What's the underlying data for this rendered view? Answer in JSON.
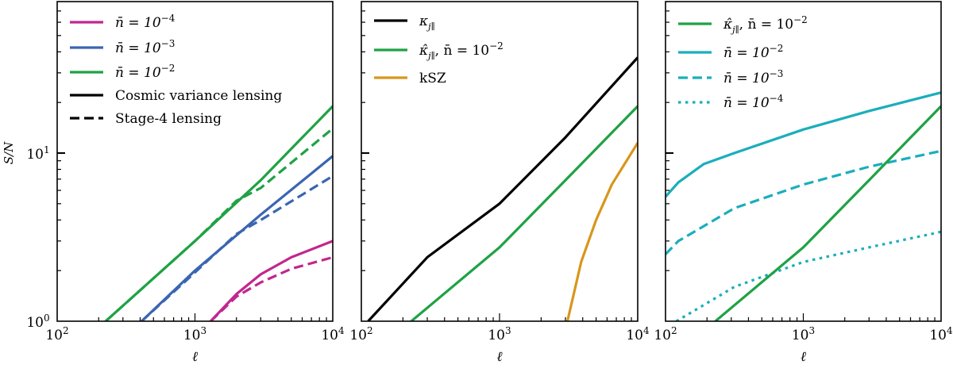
{
  "chart_data": [
    {
      "type": "line",
      "xscale": "log",
      "yscale": "log",
      "xlim": [
        100,
        10000
      ],
      "ylim": [
        1,
        80
      ],
      "xlabel": "ℓ",
      "ylabel": "S/N",
      "xticklabels": [
        {
          "base": "10",
          "exp": "2"
        },
        {
          "base": "10",
          "exp": "3"
        },
        {
          "base": "10",
          "exp": "4"
        }
      ],
      "yticklabels": [
        {
          "base": "10",
          "exp": "0"
        },
        {
          "base": "10",
          "exp": "1"
        }
      ],
      "legend_position": "top-left",
      "legend": [
        {
          "label": "n̄ = 10",
          "exp": "−4",
          "color": "#c1278f",
          "style": "solid"
        },
        {
          "label": "n̄ = 10",
          "exp": "−3",
          "color": "#3a65b1",
          "style": "solid"
        },
        {
          "label": "n̄ = 10",
          "exp": "−2",
          "color": "#1fa244",
          "style": "solid"
        },
        {
          "label": "Cosmic variance lensing",
          "exp": "",
          "color": "#000000",
          "style": "solid"
        },
        {
          "label": "Stage-4 lensing",
          "exp": "",
          "color": "#000000",
          "style": "dashed"
        }
      ],
      "series": [
        {
          "color": "#1fa244",
          "style": "solid",
          "x": [
            225,
            1000,
            3000,
            10000
          ],
          "y": [
            1,
            3.0,
            6.9,
            19
          ]
        },
        {
          "color": "#1fa244",
          "style": "dashed",
          "x": [
            225,
            1000,
            2000,
            3000,
            10000
          ],
          "y": [
            1,
            3.0,
            5.2,
            6.2,
            14
          ]
        },
        {
          "color": "#3a65b1",
          "style": "solid",
          "x": [
            410,
            1000,
            3000,
            10000
          ],
          "y": [
            1,
            2.0,
            4.3,
            9.6
          ]
        },
        {
          "color": "#3a65b1",
          "style": "dashed",
          "x": [
            410,
            1000,
            2000,
            3000,
            10000
          ],
          "y": [
            1,
            1.95,
            3.3,
            4.0,
            7.3
          ]
        },
        {
          "color": "#c1278f",
          "style": "solid",
          "x": [
            1300,
            2000,
            3000,
            5000,
            10000
          ],
          "y": [
            1,
            1.45,
            1.9,
            2.4,
            3.0
          ]
        },
        {
          "color": "#c1278f",
          "style": "dashed",
          "x": [
            1300,
            2000,
            3000,
            5000,
            10000
          ],
          "y": [
            1,
            1.4,
            1.7,
            2.05,
            2.4
          ]
        }
      ]
    },
    {
      "type": "line",
      "xscale": "log",
      "yscale": "log",
      "xlim": [
        100,
        10000
      ],
      "ylim": [
        1,
        80
      ],
      "xlabel": "ℓ",
      "xticklabels": [
        {
          "base": "10",
          "exp": "2"
        },
        {
          "base": "10",
          "exp": "3"
        },
        {
          "base": "10",
          "exp": "4"
        }
      ],
      "legend_position": "top-left",
      "legend": [
        {
          "label": "κ",
          "hat": false,
          "sub": "j∥",
          "rest": "",
          "exp": "",
          "color": "#000000",
          "style": "solid"
        },
        {
          "label": "κ̂",
          "hat": true,
          "sub": "j∥",
          "rest": ", n̄ = 10",
          "exp": "−2",
          "color": "#1fa244",
          "style": "solid"
        },
        {
          "label": "kSZ",
          "sub": "",
          "rest": "",
          "exp": "",
          "color": "#d8961c",
          "style": "solid"
        }
      ],
      "series": [
        {
          "color": "#000000",
          "style": "solid",
          "x": [
            112,
            300,
            1000,
            3000,
            10000
          ],
          "y": [
            1,
            2.4,
            5.0,
            12.4,
            37
          ]
        },
        {
          "color": "#1fa244",
          "style": "solid",
          "x": [
            230,
            1000,
            3000,
            10000
          ],
          "y": [
            1,
            2.75,
            6.9,
            19
          ]
        },
        {
          "color": "#d8961c",
          "style": "solid",
          "x": [
            3100,
            3900,
            5000,
            6500,
            10000
          ],
          "y": [
            1,
            2.25,
            4.0,
            6.5,
            11.5
          ]
        }
      ]
    },
    {
      "type": "line",
      "xscale": "log",
      "yscale": "log",
      "xlim": [
        100,
        10000
      ],
      "ylim": [
        1,
        80
      ],
      "xlabel": "ℓ",
      "xticklabels": [
        {
          "base": "10",
          "exp": "2"
        },
        {
          "base": "10",
          "exp": "3"
        },
        {
          "base": "10",
          "exp": "4"
        }
      ],
      "legend_position": "top-left",
      "legend": [
        {
          "label": "κ̂",
          "hat": true,
          "sub": "j∥",
          "rest": ", n̄ = 10",
          "exp": "−2",
          "color": "#1fa244",
          "style": "solid"
        },
        {
          "label": "n̄ = 10",
          "sub": "",
          "rest": "",
          "exp": "−2",
          "color": "#1aaebb",
          "style": "solid"
        },
        {
          "label": "n̄ = 10",
          "sub": "",
          "rest": "",
          "exp": "−3",
          "color": "#1aaebb",
          "style": "dashed"
        },
        {
          "label": "n̄ = 10",
          "sub": "",
          "rest": "",
          "exp": "−4",
          "color": "#1aaebb",
          "style": "dotted"
        }
      ],
      "series": [
        {
          "color": "#1aaebb",
          "style": "solid",
          "x": [
            100,
            124,
            189,
            316,
            1000,
            3000,
            10000
          ],
          "y": [
            5.5,
            6.7,
            8.6,
            10,
            13.8,
            17.8,
            22.9
          ]
        },
        {
          "color": "#1aaebb",
          "style": "dashed",
          "x": [
            100,
            124,
            316,
            1000,
            3000,
            10000
          ],
          "y": [
            2.5,
            3.0,
            4.7,
            6.5,
            8.3,
            10.3
          ]
        },
        {
          "color": "#1aaebb",
          "style": "dotted",
          "x": [
            120,
            316,
            1000,
            3000,
            10000
          ],
          "y": [
            1,
            1.6,
            2.25,
            2.75,
            3.4
          ]
        },
        {
          "color": "#1fa244",
          "style": "solid",
          "x": [
            230,
            1000,
            3000,
            10000
          ],
          "y": [
            1,
            2.75,
            6.9,
            19
          ]
        }
      ]
    }
  ]
}
